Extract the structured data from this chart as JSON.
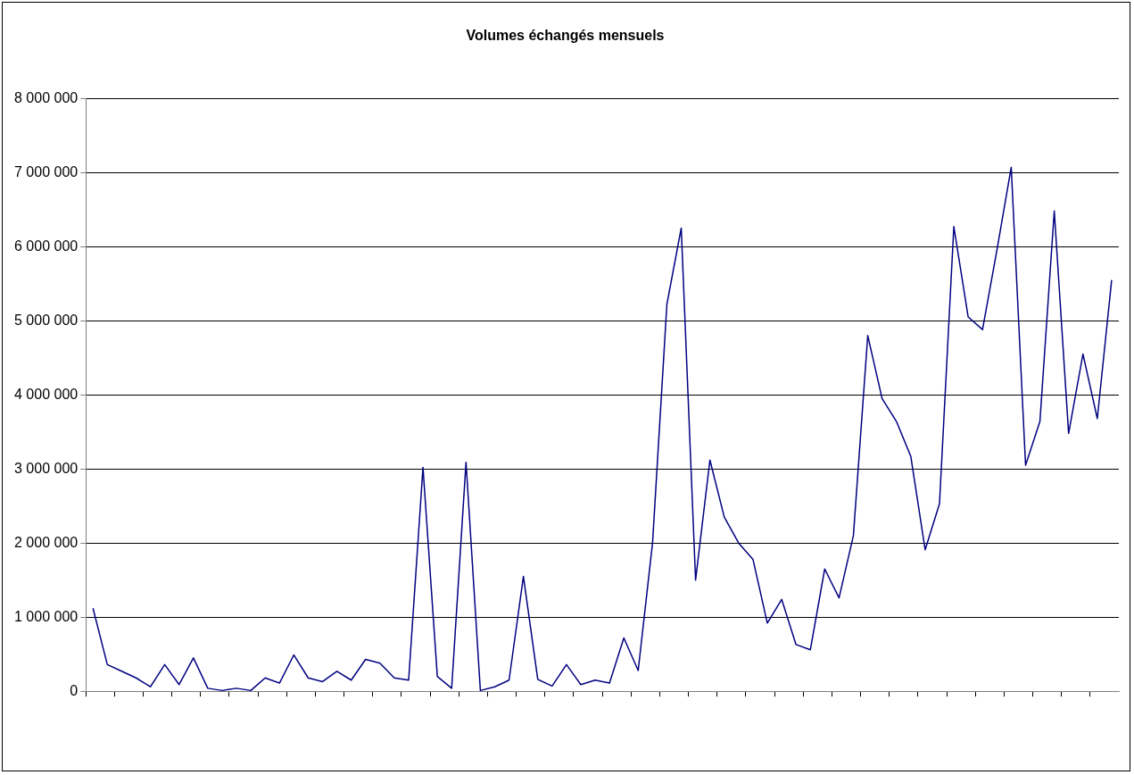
{
  "chart_data": {
    "type": "line",
    "title": "Volumes échangés mensuels",
    "categories": [
      null,
      null,
      null,
      null,
      null,
      null,
      null,
      null,
      null,
      null,
      null,
      null,
      null,
      null,
      null,
      null,
      null,
      null,
      null,
      null,
      null,
      null,
      null,
      null,
      null,
      null,
      null,
      null,
      null,
      null,
      null,
      null,
      null,
      null,
      null,
      null,
      null,
      null,
      null,
      null,
      null,
      null,
      null,
      null,
      null,
      null,
      null,
      null,
      null,
      null,
      null,
      null,
      null,
      null,
      null,
      null,
      null,
      null,
      null,
      null,
      null,
      null,
      null,
      null,
      null,
      null,
      null,
      null,
      null,
      null,
      null,
      null
    ],
    "series": [
      {
        "color": "#000080",
        "values": [
          1120000,
          360000,
          270000,
          180000,
          60000,
          360000,
          90000,
          450000,
          40000,
          10000,
          40000,
          10000,
          180000,
          110000,
          490000,
          180000,
          130000,
          270000,
          150000,
          430000,
          380000,
          180000,
          150000,
          3020000,
          200000,
          40000,
          3090000,
          10000,
          60000,
          150000,
          1550000,
          160000,
          70000,
          360000,
          90000,
          150000,
          110000,
          720000,
          280000,
          2000000,
          5220000,
          6250000,
          1500000,
          3120000,
          2350000,
          2000000,
          1780000,
          920000,
          1240000,
          630000,
          560000,
          1650000,
          1260000,
          2100000,
          4800000,
          3950000,
          3640000,
          3170000,
          1910000,
          2530000,
          6270000,
          5050000,
          4880000,
          5950000,
          7070000,
          3050000,
          3640000,
          6480000,
          3480000,
          4550000,
          3680000,
          5550000
        ]
      }
    ],
    "ylim": [
      0,
      8000000
    ],
    "yticks": [
      {
        "value": 0,
        "label": "0"
      },
      {
        "value": 1000000,
        "label": "1 000 000"
      },
      {
        "value": 2000000,
        "label": "2 000 000"
      },
      {
        "value": 3000000,
        "label": "3 000 000"
      },
      {
        "value": 4000000,
        "label": "4 000 000"
      },
      {
        "value": 5000000,
        "label": "5 000 000"
      },
      {
        "value": 6000000,
        "label": "6 000 000"
      },
      {
        "value": 7000000,
        "label": "7 000 000"
      },
      {
        "value": 8000000,
        "label": "8 000 000"
      }
    ],
    "grid": "y",
    "legend": false,
    "marker": "none",
    "line_style": "solid"
  }
}
